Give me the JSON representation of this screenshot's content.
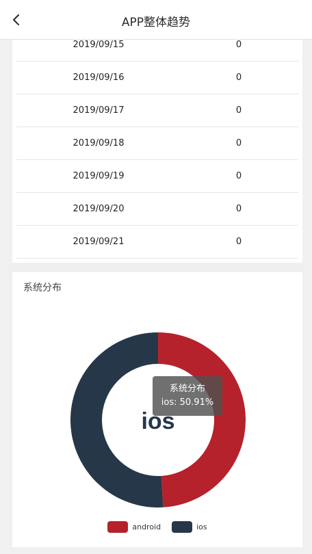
{
  "header": {
    "title": "APP整体趋势"
  },
  "table": {
    "rows": [
      {
        "date": "2019/09/15",
        "value": "0"
      },
      {
        "date": "2019/09/16",
        "value": "0"
      },
      {
        "date": "2019/09/17",
        "value": "0"
      },
      {
        "date": "2019/09/18",
        "value": "0"
      },
      {
        "date": "2019/09/19",
        "value": "0"
      },
      {
        "date": "2019/09/20",
        "value": "0"
      },
      {
        "date": "2019/09/21",
        "value": "0"
      }
    ]
  },
  "chart_card": {
    "heading": "系统分布"
  },
  "tooltip": {
    "title": "系统分布",
    "text": "ios: 50.91%"
  },
  "colors": {
    "android": "#b5222b",
    "ios": "#263749"
  },
  "chart_data": {
    "type": "pie",
    "title": "系统分布",
    "center_label": "ios",
    "series": [
      {
        "name": "android",
        "percent": 49.09
      },
      {
        "name": "ios",
        "percent": 50.91
      }
    ],
    "legend": [
      "android",
      "ios"
    ]
  }
}
